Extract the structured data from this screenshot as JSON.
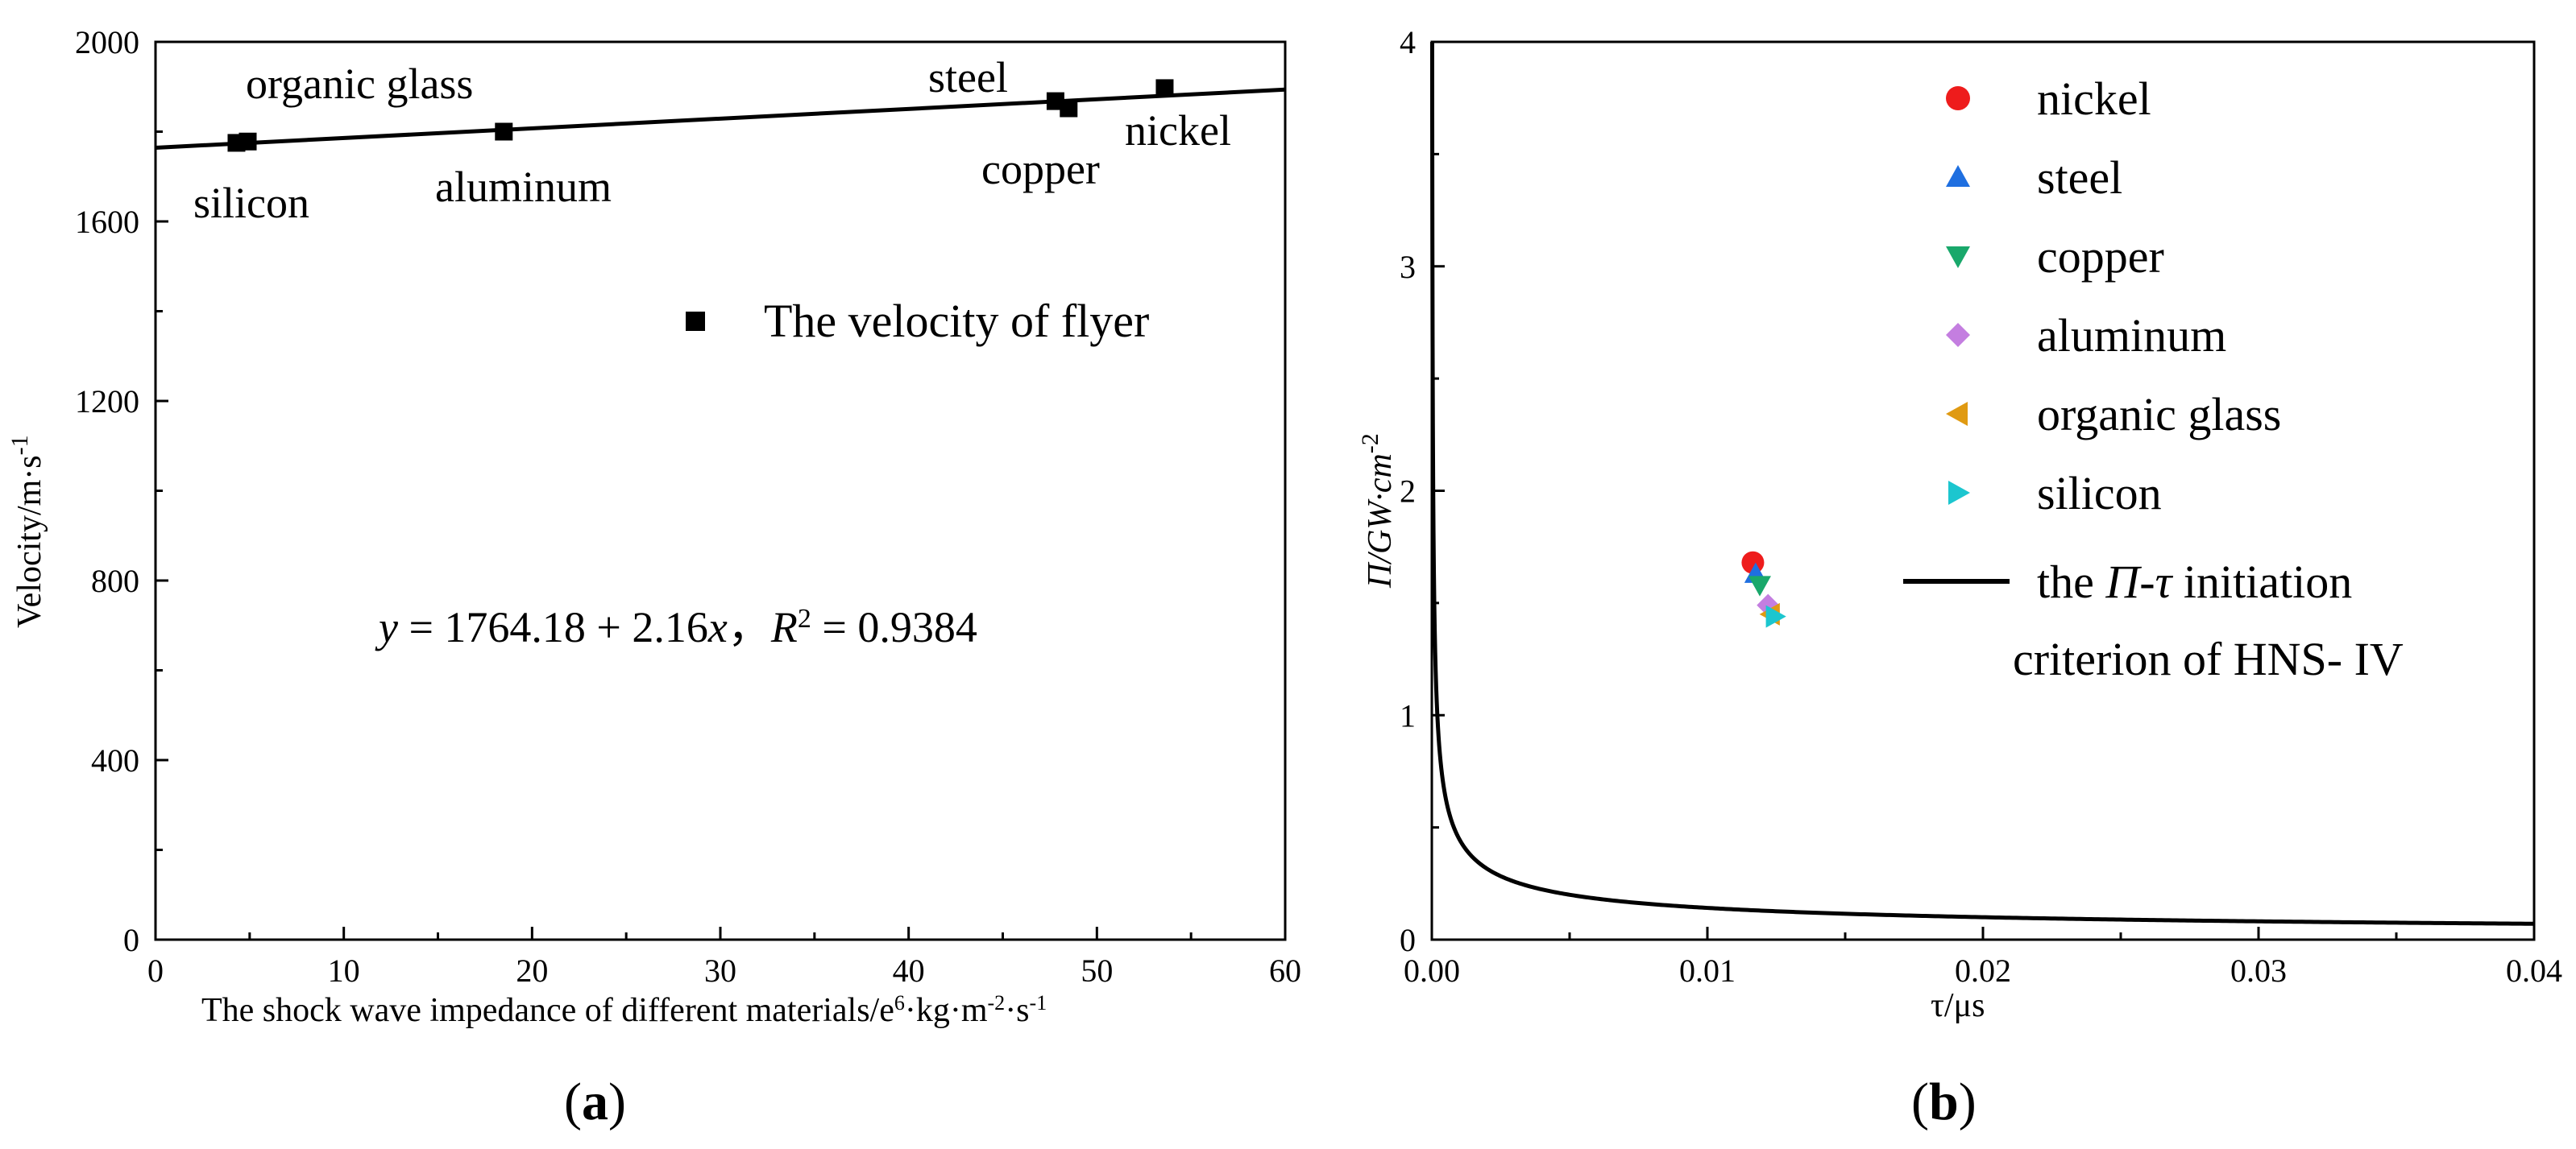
{
  "chart_data": [
    {
      "panel": "a",
      "panel_label": "a",
      "type": "scatter",
      "xlabel": "The shock wave impedance of different materials/e",
      "xlabel_sup1": "6",
      "xlabel_mid": "·kg·m",
      "xlabel_sup2": "-2",
      "xlabel_end": "·s",
      "xlabel_sup3": "-1",
      "ylabel": "Velocity/m·s",
      "ylabel_sup": "-1",
      "xlim": [
        0,
        60
      ],
      "ylim": [
        0,
        2000
      ],
      "xticks": [
        "0",
        "10",
        "20",
        "30",
        "40",
        "50",
        "60"
      ],
      "yticks": [
        "0",
        "400",
        "800",
        "1200",
        "1600",
        "2000"
      ],
      "series": [
        {
          "name": "The velocity of flyer",
          "color": "#000000",
          "marker": "square",
          "points": [
            {
              "label": "silicon",
              "x": 4.3,
              "y": 1775
            },
            {
              "label": "organic glass",
              "x": 4.9,
              "y": 1778
            },
            {
              "label": "aluminum",
              "x": 18.5,
              "y": 1800
            },
            {
              "label": "steel",
              "x": 47.8,
              "y": 1868
            },
            {
              "label": "copper",
              "x": 48.5,
              "y": 1852
            },
            {
              "label": "nickel",
              "x": 53.6,
              "y": 1897
            }
          ]
        }
      ],
      "fit": {
        "intercept": 1764.18,
        "slope": 2.16
      },
      "equation": {
        "y": "y",
        "body": " = 1764.18 + 2.16",
        "x": "x",
        "sep": "，",
        "r": "R",
        "r_sup": "2",
        "r_val": " = 0.9384"
      }
    },
    {
      "panel": "b",
      "panel_label": "b",
      "type": "scatter",
      "xlabel": "τ/μs",
      "ylabel": "Π/GW·cm",
      "ylabel_sup": "-2",
      "xlim": [
        0,
        0.04
      ],
      "ylim": [
        0,
        4
      ],
      "xticks": [
        "0.00",
        "0.01",
        "0.02",
        "0.03",
        "0.04"
      ],
      "yticks": [
        "0",
        "1",
        "2",
        "3",
        "4"
      ],
      "series": [
        {
          "name": "nickel",
          "color": "#ee1c1c",
          "marker": "circle",
          "x": 0.01165,
          "y": 1.68
        },
        {
          "name": "steel",
          "color": "#1f6fe0",
          "marker": "triangle-up",
          "x": 0.01175,
          "y": 1.63
        },
        {
          "name": "copper",
          "color": "#19a86b",
          "marker": "triangle-down",
          "x": 0.0119,
          "y": 1.58
        },
        {
          "name": "aluminum",
          "color": "#c47ee0",
          "marker": "diamond",
          "x": 0.0122,
          "y": 1.49
        },
        {
          "name": "organic glass",
          "color": "#e09a12",
          "marker": "triangle-left",
          "x": 0.0123,
          "y": 1.45
        },
        {
          "name": "silicon",
          "color": "#1cc6cf",
          "marker": "triangle-right",
          "x": 0.01245,
          "y": 1.44
        }
      ],
      "curve": {
        "type": "line",
        "name_prefix": "the ",
        "name_pi": "Π",
        "name_dash": "-",
        "name_tau": "τ",
        "name_suffix": " initiation",
        "name_line2": "criterion of HNS- IV",
        "color": "#000000",
        "k": 0.0002,
        "exponent": 2
      }
    }
  ]
}
